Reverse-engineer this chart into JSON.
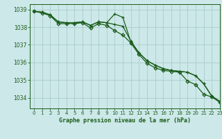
{
  "title": "Graphe pression niveau de la mer (hPa)",
  "bg_color": "#cce8e8",
  "grid_color": "#aacccc",
  "line_color": "#1a5c1a",
  "xlim": [
    -0.5,
    23
  ],
  "ylim": [
    1033.4,
    1039.3
  ],
  "xticks": [
    0,
    1,
    2,
    3,
    4,
    5,
    6,
    7,
    8,
    9,
    10,
    11,
    12,
    13,
    14,
    15,
    16,
    17,
    18,
    19,
    20,
    21,
    22,
    23
  ],
  "yticks": [
    1034,
    1035,
    1036,
    1037,
    1038,
    1039
  ],
  "series": [
    {
      "y": [
        1038.9,
        1038.85,
        1038.7,
        1038.3,
        1038.25,
        1038.25,
        1038.3,
        1038.1,
        1038.3,
        1038.25,
        1038.75,
        1038.55,
        1037.15,
        1036.55,
        1036.1,
        1035.85,
        1035.65,
        1035.55,
        1035.5,
        1035.45,
        1035.25,
        1034.8,
        1034.1,
        1033.8
      ],
      "marker": "+",
      "ms": 3.5,
      "lw": 0.9
    },
    {
      "y": [
        1038.9,
        1038.85,
        1038.7,
        1038.3,
        1038.25,
        1038.25,
        1038.3,
        1038.1,
        1038.3,
        1038.25,
        1038.15,
        1038.05,
        1037.2,
        1036.55,
        1036.1,
        1035.85,
        1035.65,
        1035.55,
        1035.5,
        1035.45,
        1035.25,
        1034.8,
        1034.1,
        1033.8
      ],
      "marker": "+",
      "ms": 3.5,
      "lw": 0.9
    },
    {
      "y": [
        1038.9,
        1038.8,
        1038.65,
        1038.2,
        1038.2,
        1038.2,
        1038.25,
        1037.95,
        1038.2,
        1038.1,
        1037.8,
        1037.55,
        1037.1,
        1036.45,
        1035.95,
        1035.7,
        1035.55,
        1035.5,
        1035.45,
        1034.95,
        1034.75,
        1034.2,
        1034.05,
        1033.75
      ],
      "marker": "D",
      "ms": 2.5,
      "lw": 0.9
    }
  ]
}
